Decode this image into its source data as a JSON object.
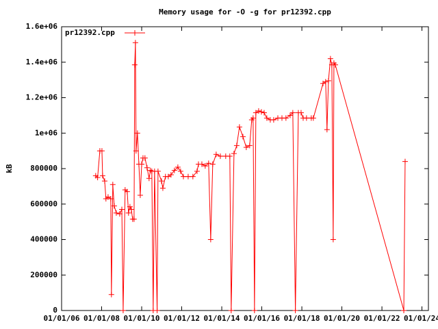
{
  "chart_data": {
    "type": "line",
    "title": "Memory usage for -O -g for pr12392.cpp",
    "y_label": "kB",
    "legend": "top-left",
    "series": [
      {
        "name": "pr12392.cpp",
        "color": "#ff0000",
        "x": [
          "2007-09-15",
          "2007-10-20",
          "2007-11-30",
          "2008-01-07",
          "2008-01-19",
          "2008-02-26",
          "2008-03-20",
          "2008-04-28",
          "2008-06-16",
          "2008-06-28",
          "2008-07-23",
          "2008-08-18",
          "2008-09-25",
          "2008-11-26",
          "2009-01-04",
          "2009-01-28",
          "2009-03-05",
          "2009-04-12",
          "2009-05-06",
          "2009-06-01",
          "2009-06-26",
          "2009-07-20",
          "2009-08-15",
          "2009-08-27",
          "2009-09-09",
          "2009-09-21",
          "2009-10-16",
          "2009-11-11",
          "2009-12-06",
          "2010-01-01",
          "2010-01-25",
          "2010-03-02",
          "2010-04-09",
          "2010-05-16",
          "2010-06-10",
          "2010-07-05",
          "2010-07-30",
          "2010-08-24",
          "2010-10-10",
          "2010-10-26",
          "2010-12-28",
          "2011-01-22",
          "2011-03-11",
          "2011-05-01",
          "2011-06-20",
          "2011-08-21",
          "2011-10-23",
          "2011-12-12",
          "2012-02-01",
          "2012-04-28",
          "2012-07-23",
          "2012-10-07",
          "2012-11-02",
          "2013-01-03",
          "2013-03-05",
          "2013-05-06",
          "2013-06-13",
          "2013-07-20",
          "2013-09-21",
          "2013-12-06",
          "2014-03-14",
          "2014-05-28",
          "2014-06-22",
          "2014-08-12",
          "2014-10-01",
          "2014-11-20",
          "2015-01-22",
          "2015-03-24",
          "2015-05-25",
          "2015-07-02",
          "2015-07-27",
          "2015-08-21",
          "2015-09-15",
          "2015-11-05",
          "2015-12-25",
          "2016-02-13",
          "2016-04-02",
          "2016-06-04",
          "2016-08-05",
          "2016-10-20",
          "2017-01-03",
          "2017-03-17",
          "2017-06-01",
          "2017-07-20",
          "2017-09-05",
          "2017-10-29",
          "2017-12-18",
          "2018-01-25",
          "2018-03-27",
          "2018-06-22",
          "2018-07-30",
          "2019-01-22",
          "2019-03-11",
          "2019-04-05",
          "2019-05-01",
          "2019-06-07",
          "2019-07-02",
          "2019-07-27",
          "2019-08-09",
          "2019-09-03",
          "2023-02-04",
          "2023-02-28"
        ],
        "values": [
          760000,
          750000,
          900000,
          900000,
          760000,
          730000,
          630000,
          640000,
          630000,
          90000,
          710000,
          590000,
          550000,
          545000,
          570000,
          0,
          680000,
          670000,
          550000,
          585000,
          570000,
          515000,
          515000,
          1385000,
          1510000,
          900000,
          1000000,
          825000,
          650000,
          825000,
          860000,
          860000,
          805000,
          745000,
          790000,
          785000,
          0,
          785000,
          0,
          785000,
          730000,
          690000,
          755000,
          755000,
          765000,
          790000,
          808000,
          785000,
          755000,
          755000,
          755000,
          785000,
          825000,
          825000,
          815000,
          830000,
          400000,
          825000,
          880000,
          870000,
          870000,
          870000,
          0,
          885000,
          930000,
          1035000,
          980000,
          920000,
          930000,
          1075000,
          1085000,
          0,
          1115000,
          1125000,
          1120000,
          1115000,
          1085000,
          1075000,
          1075000,
          1085000,
          1085000,
          1085000,
          1100000,
          1115000,
          0,
          1115000,
          1115000,
          1085000,
          1085000,
          1085000,
          1085000,
          1280000,
          1290000,
          1020000,
          1295000,
          1420000,
          1385000,
          400000,
          1395000,
          1385000,
          0,
          840000
        ]
      }
    ],
    "xlim": [
      "2006-01-01",
      "2024-04-28"
    ],
    "xticks": [
      {
        "value": "2006-01-01",
        "label": "01/01/06"
      },
      {
        "value": "2008-01-01",
        "label": "01/01/08"
      },
      {
        "value": "2010-01-01",
        "label": "01/01/10"
      },
      {
        "value": "2012-01-01",
        "label": "01/01/12"
      },
      {
        "value": "2014-01-01",
        "label": "01/01/14"
      },
      {
        "value": "2016-01-01",
        "label": "01/01/16"
      },
      {
        "value": "2018-01-01",
        "label": "01/01/18"
      },
      {
        "value": "2020-01-01",
        "label": "01/01/20"
      },
      {
        "value": "2022-01-01",
        "label": "01/01/22"
      },
      {
        "value": "2024-01-01",
        "label": "01/01/24"
      }
    ],
    "ylim": [
      0,
      1600000
    ],
    "yticks": [
      0,
      200000,
      400000,
      600000,
      800000,
      {
        "value": 1000000,
        "label": "1e+06"
      },
      {
        "value": 1200000,
        "label": "1.2e+06"
      },
      {
        "value": 1400000,
        "label": "1.4e+06"
      },
      {
        "value": 1600000,
        "label": "1.6e+06"
      }
    ]
  }
}
